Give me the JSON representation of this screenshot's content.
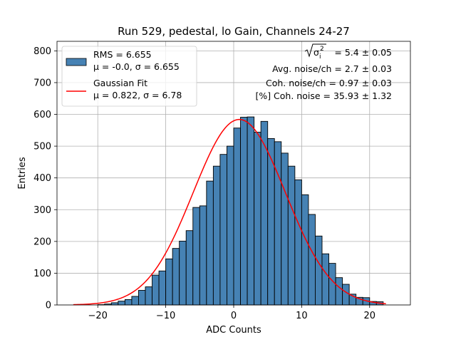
{
  "chart_data": {
    "type": "bar",
    "title": "Run 529, pedestal, lo Gain, Channels 24-27",
    "xlabel": "ADC Counts",
    "ylabel": "Entries",
    "xlim": [
      -26,
      26
    ],
    "ylim": [
      0,
      830
    ],
    "xticks": [
      -20,
      -10,
      0,
      10,
      20
    ],
    "xtick_labels": [
      "−20",
      "−10",
      "0",
      "10",
      "20"
    ],
    "yticks": [
      0,
      100,
      200,
      300,
      400,
      500,
      600,
      700,
      800
    ],
    "grid": true,
    "legend_placement": "top-left",
    "bar_color": "#4682b4",
    "fit_color": "#ff0000",
    "histogram": {
      "name": "RMS = 6.655",
      "stats_label": "μ = -0.0, σ = 6.655",
      "bin_width": 1,
      "bin_start": -20,
      "counts": [
        1,
        3,
        7,
        12,
        17,
        27,
        46,
        57,
        94,
        107,
        145,
        178,
        201,
        234,
        307,
        312,
        390,
        437,
        474,
        500,
        557,
        591,
        592,
        544,
        578,
        524,
        514,
        478,
        437,
        394,
        347,
        285,
        217,
        161,
        131,
        86,
        65,
        34,
        24,
        23,
        11,
        10
      ]
    },
    "fit": {
      "name": "Gaussian Fit",
      "stats_label": "μ = 0.822, σ = 6.78",
      "mu": 0.822,
      "sigma": 6.78,
      "amplitude": 584,
      "x_range": [
        -23.6,
        22.4
      ]
    },
    "annotations": [
      {
        "prefix": "",
        "text": " = 5.4 ± 0.05",
        "sqrt_symbol": "σ",
        "sqrt_sub": "i",
        "sqrt_sup": "2"
      },
      {
        "text": "Avg. noise/ch = 2.7 ± 0.03"
      },
      {
        "text": "Coh. noise/ch = 0.97 ± 0.03"
      },
      {
        "text": "[%] Coh. noise = 35.93 ± 1.32"
      }
    ]
  }
}
